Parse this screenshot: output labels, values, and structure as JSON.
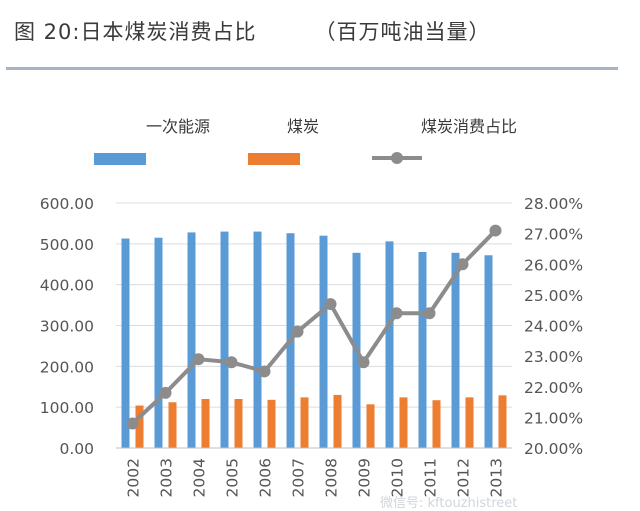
{
  "title": {
    "main": "图 20:日本煤炭消费占比",
    "unit": "（百万吨油当量）"
  },
  "watermark": "微信号: kftouzhistreet",
  "colors": {
    "primary_bar": "#5b9bd5",
    "coal_bar": "#ed7d31",
    "share_line": "#8c8c8c",
    "axis_text": "#555555",
    "grid": "#dcdcdc"
  },
  "chart_data": {
    "type": "bar",
    "title": "日本煤炭消费占比",
    "categories": [
      "2002",
      "2003",
      "2004",
      "2005",
      "2006",
      "2007",
      "2008",
      "2009",
      "2010",
      "2011",
      "2012",
      "2013"
    ],
    "series": [
      {
        "name": "一次能源",
        "type": "bar",
        "axis": "left",
        "values": [
          513,
          515,
          528,
          530,
          530,
          526,
          520,
          478,
          506,
          480,
          478,
          472
        ]
      },
      {
        "name": "煤炭",
        "type": "bar",
        "axis": "left",
        "values": [
          104,
          112,
          120,
          120,
          118,
          124,
          130,
          107,
          124,
          117,
          124,
          129
        ]
      },
      {
        "name": "煤炭消费占比",
        "type": "line",
        "axis": "right",
        "values": [
          20.8,
          21.8,
          22.9,
          22.8,
          22.5,
          23.8,
          24.7,
          22.8,
          24.4,
          24.4,
          26.0,
          27.1
        ]
      }
    ],
    "left_axis": {
      "min": 0,
      "max": 600,
      "ticks": [
        "0.00",
        "100.00",
        "200.00",
        "300.00",
        "400.00",
        "500.00",
        "600.00"
      ]
    },
    "right_axis": {
      "min": 20,
      "max": 28,
      "ticks": [
        "20.00%",
        "21.00%",
        "22.00%",
        "23.00%",
        "24.00%",
        "25.00%",
        "26.00%",
        "27.00%",
        "28.00%"
      ]
    },
    "legend_position": "top"
  }
}
